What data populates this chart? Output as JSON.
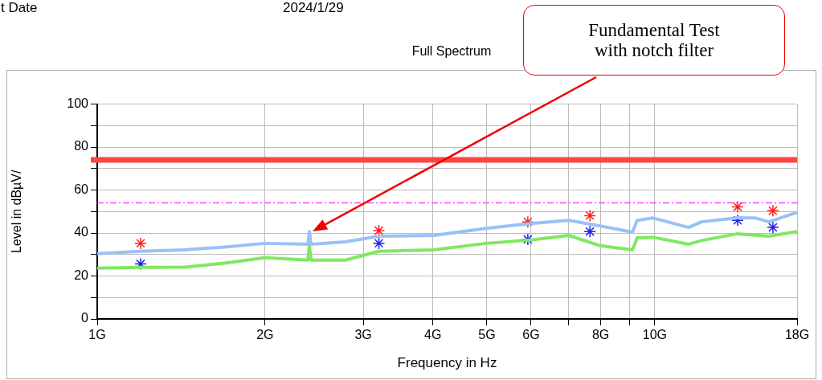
{
  "chart_data": {
    "type": "line",
    "title": "Full Spectrum",
    "xlabel": "Frequency in Hz",
    "ylabel": "Level in dBµV/",
    "annotations": [
      "t Date",
      "2024/1/29",
      "Fundamental Test with notch filter"
    ],
    "log": "x",
    "grid": true,
    "marker": "none",
    "xlim": [
      1,
      18
    ],
    "xticks": [
      {
        "value": 1,
        "label": "1G"
      },
      {
        "value": 2,
        "label": "2G"
      },
      {
        "value": 3,
        "label": "3G"
      },
      {
        "value": 4,
        "label": "4G"
      },
      {
        "value": 5,
        "label": "5G"
      },
      {
        "value": 6,
        "label": "6G"
      },
      {
        "value": 7,
        "label": null
      },
      {
        "value": 8,
        "label": "8G"
      },
      {
        "value": 9,
        "label": null
      },
      {
        "value": 10,
        "label": "10G"
      },
      {
        "value": 18,
        "label": "18G"
      }
    ],
    "ylim": [
      0,
      100
    ],
    "yticks": [
      0,
      {
        "value": 10,
        "label": null
      },
      20,
      {
        "value": 30,
        "label": null
      },
      40,
      {
        "value": 50,
        "label": null
      },
      60,
      {
        "value": 70,
        "label": null
      },
      80,
      {
        "value": 90,
        "label": null
      },
      100
    ],
    "ref_lines": [
      {
        "axis": "y",
        "value": 74,
        "label": null,
        "color": "#ff4444",
        "line_style": "solid"
      },
      {
        "axis": "y",
        "value": 54,
        "label": null,
        "color": "#ff44ff",
        "line_style": "dashed"
      }
    ],
    "series": [
      {
        "color": "#99c2f5",
        "x": [
          1,
          1.196,
          1.436,
          1.695,
          2,
          2.386,
          2.402,
          2.418,
          2.788,
          3.2,
          4.016,
          4.984,
          5.98,
          7.01,
          7.98,
          9.12,
          9.3,
          9.94,
          11.5,
          12.13,
          14.03,
          15.14,
          16.02,
          18
        ],
        "values": [
          30.4,
          31.5,
          32.2,
          33.5,
          35.2,
          34.8,
          40.7,
          34.8,
          35.9,
          38.5,
          38.9,
          42.2,
          44.4,
          45.9,
          43.3,
          40.4,
          45.9,
          47,
          42.6,
          45.2,
          47,
          47,
          45.2,
          49.6
        ]
      },
      {
        "color": "#80e860",
        "x": [
          1,
          1.196,
          1.436,
          1.695,
          2,
          2.386,
          2.402,
          2.418,
          2.788,
          3.2,
          4.016,
          4.984,
          5.98,
          7.01,
          7.98,
          9.12,
          9.3,
          9.94,
          11.5,
          12.13,
          14.03,
          15.14,
          16.02,
          18
        ],
        "values": [
          23.7,
          24,
          24.1,
          26,
          28.5,
          27.4,
          34,
          27.4,
          27.4,
          31.5,
          32.2,
          35.2,
          36.7,
          38.9,
          34.1,
          32.2,
          37.8,
          38,
          34.8,
          36.5,
          39.6,
          39,
          38.5,
          40.7
        ]
      },
      {
        "type": "scatter",
        "color": "#ff2020",
        "marker": "cross",
        "x": [
          1.196,
          3.2,
          5.92,
          7.65,
          14.08,
          16.29
        ],
        "values": [
          35.2,
          41.1,
          45.2,
          48.1,
          52.2,
          50.4
        ]
      },
      {
        "type": "scatter",
        "color": "#2020ee",
        "marker": "cross",
        "x": [
          1.196,
          3.2,
          5.92,
          7.65,
          14.08,
          16.29
        ],
        "values": [
          25.6,
          35.2,
          37,
          40.7,
          45.9,
          42.6
        ]
      }
    ]
  }
}
